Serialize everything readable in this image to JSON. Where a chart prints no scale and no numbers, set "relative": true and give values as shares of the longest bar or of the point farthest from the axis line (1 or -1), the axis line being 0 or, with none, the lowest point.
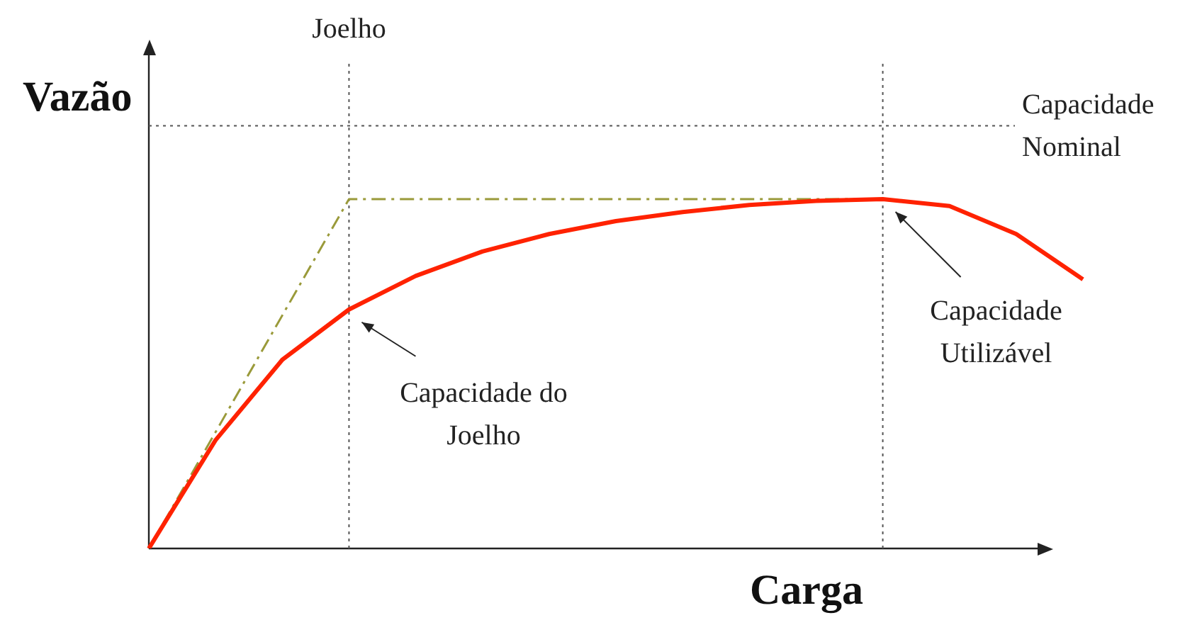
{
  "chart_data": {
    "type": "line",
    "relative": true,
    "xlabel": "Carga",
    "ylabel": "Vazão",
    "legend": false,
    "categories": [
      null,
      null,
      null,
      null,
      null,
      null,
      null,
      null,
      null,
      null,
      null,
      null,
      null,
      null,
      null
    ],
    "series": [
      {
        "color": "#ff2200",
        "line_style": "solid",
        "values": [
          0,
          0.31,
          0.54,
          0.684,
          0.78,
          0.85,
          0.9,
          0.937,
          0.963,
          0.983,
          0.995,
          1,
          0.98,
          0.9,
          0.77
        ]
      },
      {
        "color": "#9a9a3a",
        "line_style": "dashdot",
        "values": [
          0,
          0.333,
          0.667,
          1,
          1,
          1,
          1,
          1,
          1,
          1,
          1,
          1,
          null,
          null,
          null
        ]
      }
    ],
    "ref_lines": [
      {
        "axis": "y",
        "value": 1.21,
        "label": "Capacidade Nominal",
        "color": "#555555",
        "line_style": "dotted"
      }
    ],
    "annotations": [
      "Joelho",
      "Capacidade do Joelho",
      "Capacidade Utilizável"
    ]
  }
}
